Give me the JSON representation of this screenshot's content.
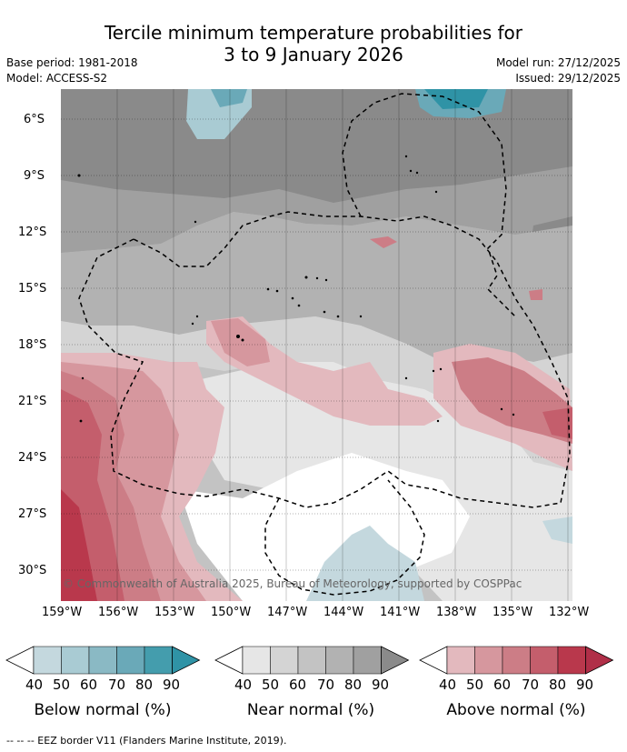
{
  "title_line1": "Tercile minimum temperature probabilities for",
  "title_line2": "3 to 9 January 2026",
  "base_period": "Base period: 1981-2018",
  "model": "Model: ACCESS-S2",
  "model_run": "Model run: 27/12/2025",
  "issued": "Issued: 29/12/2025",
  "copyright": "© Commonwealth of Australia 2025, Bureau of Meteorology, supported by COSPPac",
  "lat_ticks": [
    "6°S",
    "9°S",
    "12°S",
    "15°S",
    "18°S",
    "21°S",
    "24°S",
    "27°S",
    "30°S"
  ],
  "lon_ticks": [
    "159°W",
    "156°W",
    "153°W",
    "150°W",
    "147°W",
    "144°W",
    "141°W",
    "138°W",
    "135°W",
    "132°W"
  ],
  "colorbars": [
    {
      "label": "Below normal (%)",
      "ticks": [
        "40",
        "50",
        "60",
        "70",
        "80",
        "90"
      ],
      "colors": [
        "#c4d8de",
        "#a9cbd3",
        "#8ab9c4",
        "#6aa9b8",
        "#449dad"
      ],
      "tip": "#2f93a6"
    },
    {
      "label": "Near normal (%)",
      "ticks": [
        "40",
        "50",
        "60",
        "70",
        "80",
        "90"
      ],
      "colors": [
        "#e6e6e6",
        "#d4d4d4",
        "#c3c3c3",
        "#b2b2b2",
        "#a0a0a0"
      ],
      "tip": "#8a8a8a"
    },
    {
      "label": "Above normal (%)",
      "ticks": [
        "40",
        "50",
        "60",
        "70",
        "80",
        "90"
      ],
      "colors": [
        "#e3b9be",
        "#d6979e",
        "#cc7d86",
        "#c45e6c",
        "#b9384c"
      ],
      "tip": "#b02f48"
    }
  ],
  "footer": "--  --  -- EEZ border V11 (Flanders Marine Institute, 2019)."
}
